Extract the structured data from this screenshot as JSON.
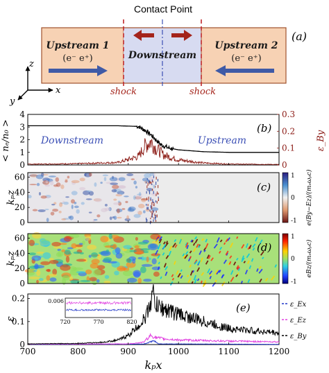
{
  "figure": {
    "panel_a": {
      "label": "(a)",
      "contact_point": "Contact Point",
      "upstream1_title": "Upstream 1",
      "upstream1_species": "(e⁻ e⁺)",
      "downstream": "Downstream",
      "upstream2_title": "Upstream 2",
      "upstream2_species": "(e⁻ e⁺)",
      "shock_left": "shock",
      "shock_right": "shock",
      "axis_z": "z",
      "axis_x": "x",
      "axis_y": "y",
      "colors": {
        "upstream_fill": "#f7d2b4",
        "downstream_fill": "#d7dbf1",
        "arrow_blue": "#3f5aa6",
        "arrow_red": "#a4241b",
        "shock": "#c0282b",
        "contact": "#3b4fb5"
      }
    },
    "panel_b": {
      "label": "(b)",
      "ylabel_left": "< nₑ/n₀ >",
      "ylabel_right": "ε_By",
      "text_downstream": "Downstream",
      "text_upstream": "Upstream",
      "yticks_left": [
        "0",
        "1",
        "2",
        "3",
        "4"
      ],
      "yticks_right": [
        "0",
        "0.1",
        "0.2",
        "0.3"
      ]
    },
    "panel_c": {
      "label": "(c)",
      "ylabel": "kₚz",
      "yticks": [
        "0",
        "20",
        "40",
        "60"
      ],
      "colorbar_label": "e(By−Ez)/(mₑωₚc)",
      "colorbar_ticks": [
        "1",
        "0",
        "-1"
      ]
    },
    "panel_d": {
      "label": "(d)",
      "ylabel": "kₚz",
      "yticks": [
        "0",
        "20",
        "40",
        "60"
      ],
      "colorbar_label": "eBz/(mₑωₚc)",
      "colorbar_ticks": [
        "1",
        "0",
        "-1"
      ]
    },
    "panel_e": {
      "label": "(e)",
      "ylabel": "ε",
      "yticks": [
        "0",
        "0.1",
        "0.2"
      ],
      "inset_yticks": [
        "0.006"
      ],
      "inset_xticks": [
        "720",
        "770",
        "820"
      ],
      "legend": [
        {
          "name": "ε_Ex",
          "color": "#1f35c9"
        },
        {
          "name": "ε_Ez",
          "color": "#e040e0"
        },
        {
          "name": "ε_By",
          "color": "#000000"
        }
      ]
    },
    "xaxis": {
      "label": "kₚx",
      "ticks": [
        "700",
        "800",
        "900",
        "1000",
        "1100",
        "1200"
      ]
    }
  },
  "chart_data": [
    {
      "type": "line",
      "panel": "b",
      "x_range": [
        700,
        1200
      ],
      "series": [
        {
          "axis": "left",
          "color": "#000000",
          "x": [
            700,
            880,
            920,
            935,
            945,
            955,
            965,
            980,
            1000,
            1050,
            1100,
            1200
          ],
          "values": [
            3.1,
            3.1,
            3.05,
            2.7,
            2.4,
            2.0,
            1.6,
            1.35,
            1.2,
            1.05,
            1.0,
            1.0
          ]
        },
        {
          "axis": "right",
          "color": "#8b1a14",
          "x": [
            700,
            800,
            880,
            920,
            935,
            945,
            955,
            970,
            1000,
            1050,
            1100,
            1200
          ],
          "values": [
            0.005,
            0.008,
            0.015,
            0.05,
            0.12,
            0.14,
            0.1,
            0.06,
            0.03,
            0.012,
            0.006,
            0.003
          ]
        }
      ],
      "ylim_left": [
        0,
        4
      ],
      "ylim_right": [
        0,
        0.3
      ]
    },
    {
      "type": "line",
      "panel": "e",
      "x_range": [
        700,
        1200
      ],
      "ylim": [
        0,
        0.22
      ],
      "series": [
        {
          "color": "#000000",
          "x": [
            700,
            800,
            850,
            880,
            900,
            920,
            935,
            945,
            950,
            955,
            965,
            990,
            1050,
            1100,
            1200
          ],
          "values": [
            0.003,
            0.005,
            0.01,
            0.02,
            0.04,
            0.08,
            0.12,
            0.19,
            0.22,
            0.17,
            0.16,
            0.14,
            0.1,
            0.07,
            0.05
          ]
        },
        {
          "color": "#e040e0",
          "x": [
            700,
            900,
            930,
            945,
            955,
            970,
            1000,
            1100,
            1200
          ],
          "values": [
            0.002,
            0.003,
            0.01,
            0.04,
            0.03,
            0.025,
            0.02,
            0.015,
            0.012
          ]
        },
        {
          "color": "#1f35c9",
          "x": [
            700,
            930,
            945,
            950,
            960,
            1200
          ],
          "values": [
            0.001,
            0.002,
            0.012,
            0.018,
            0.003,
            0.001
          ]
        }
      ]
    }
  ]
}
